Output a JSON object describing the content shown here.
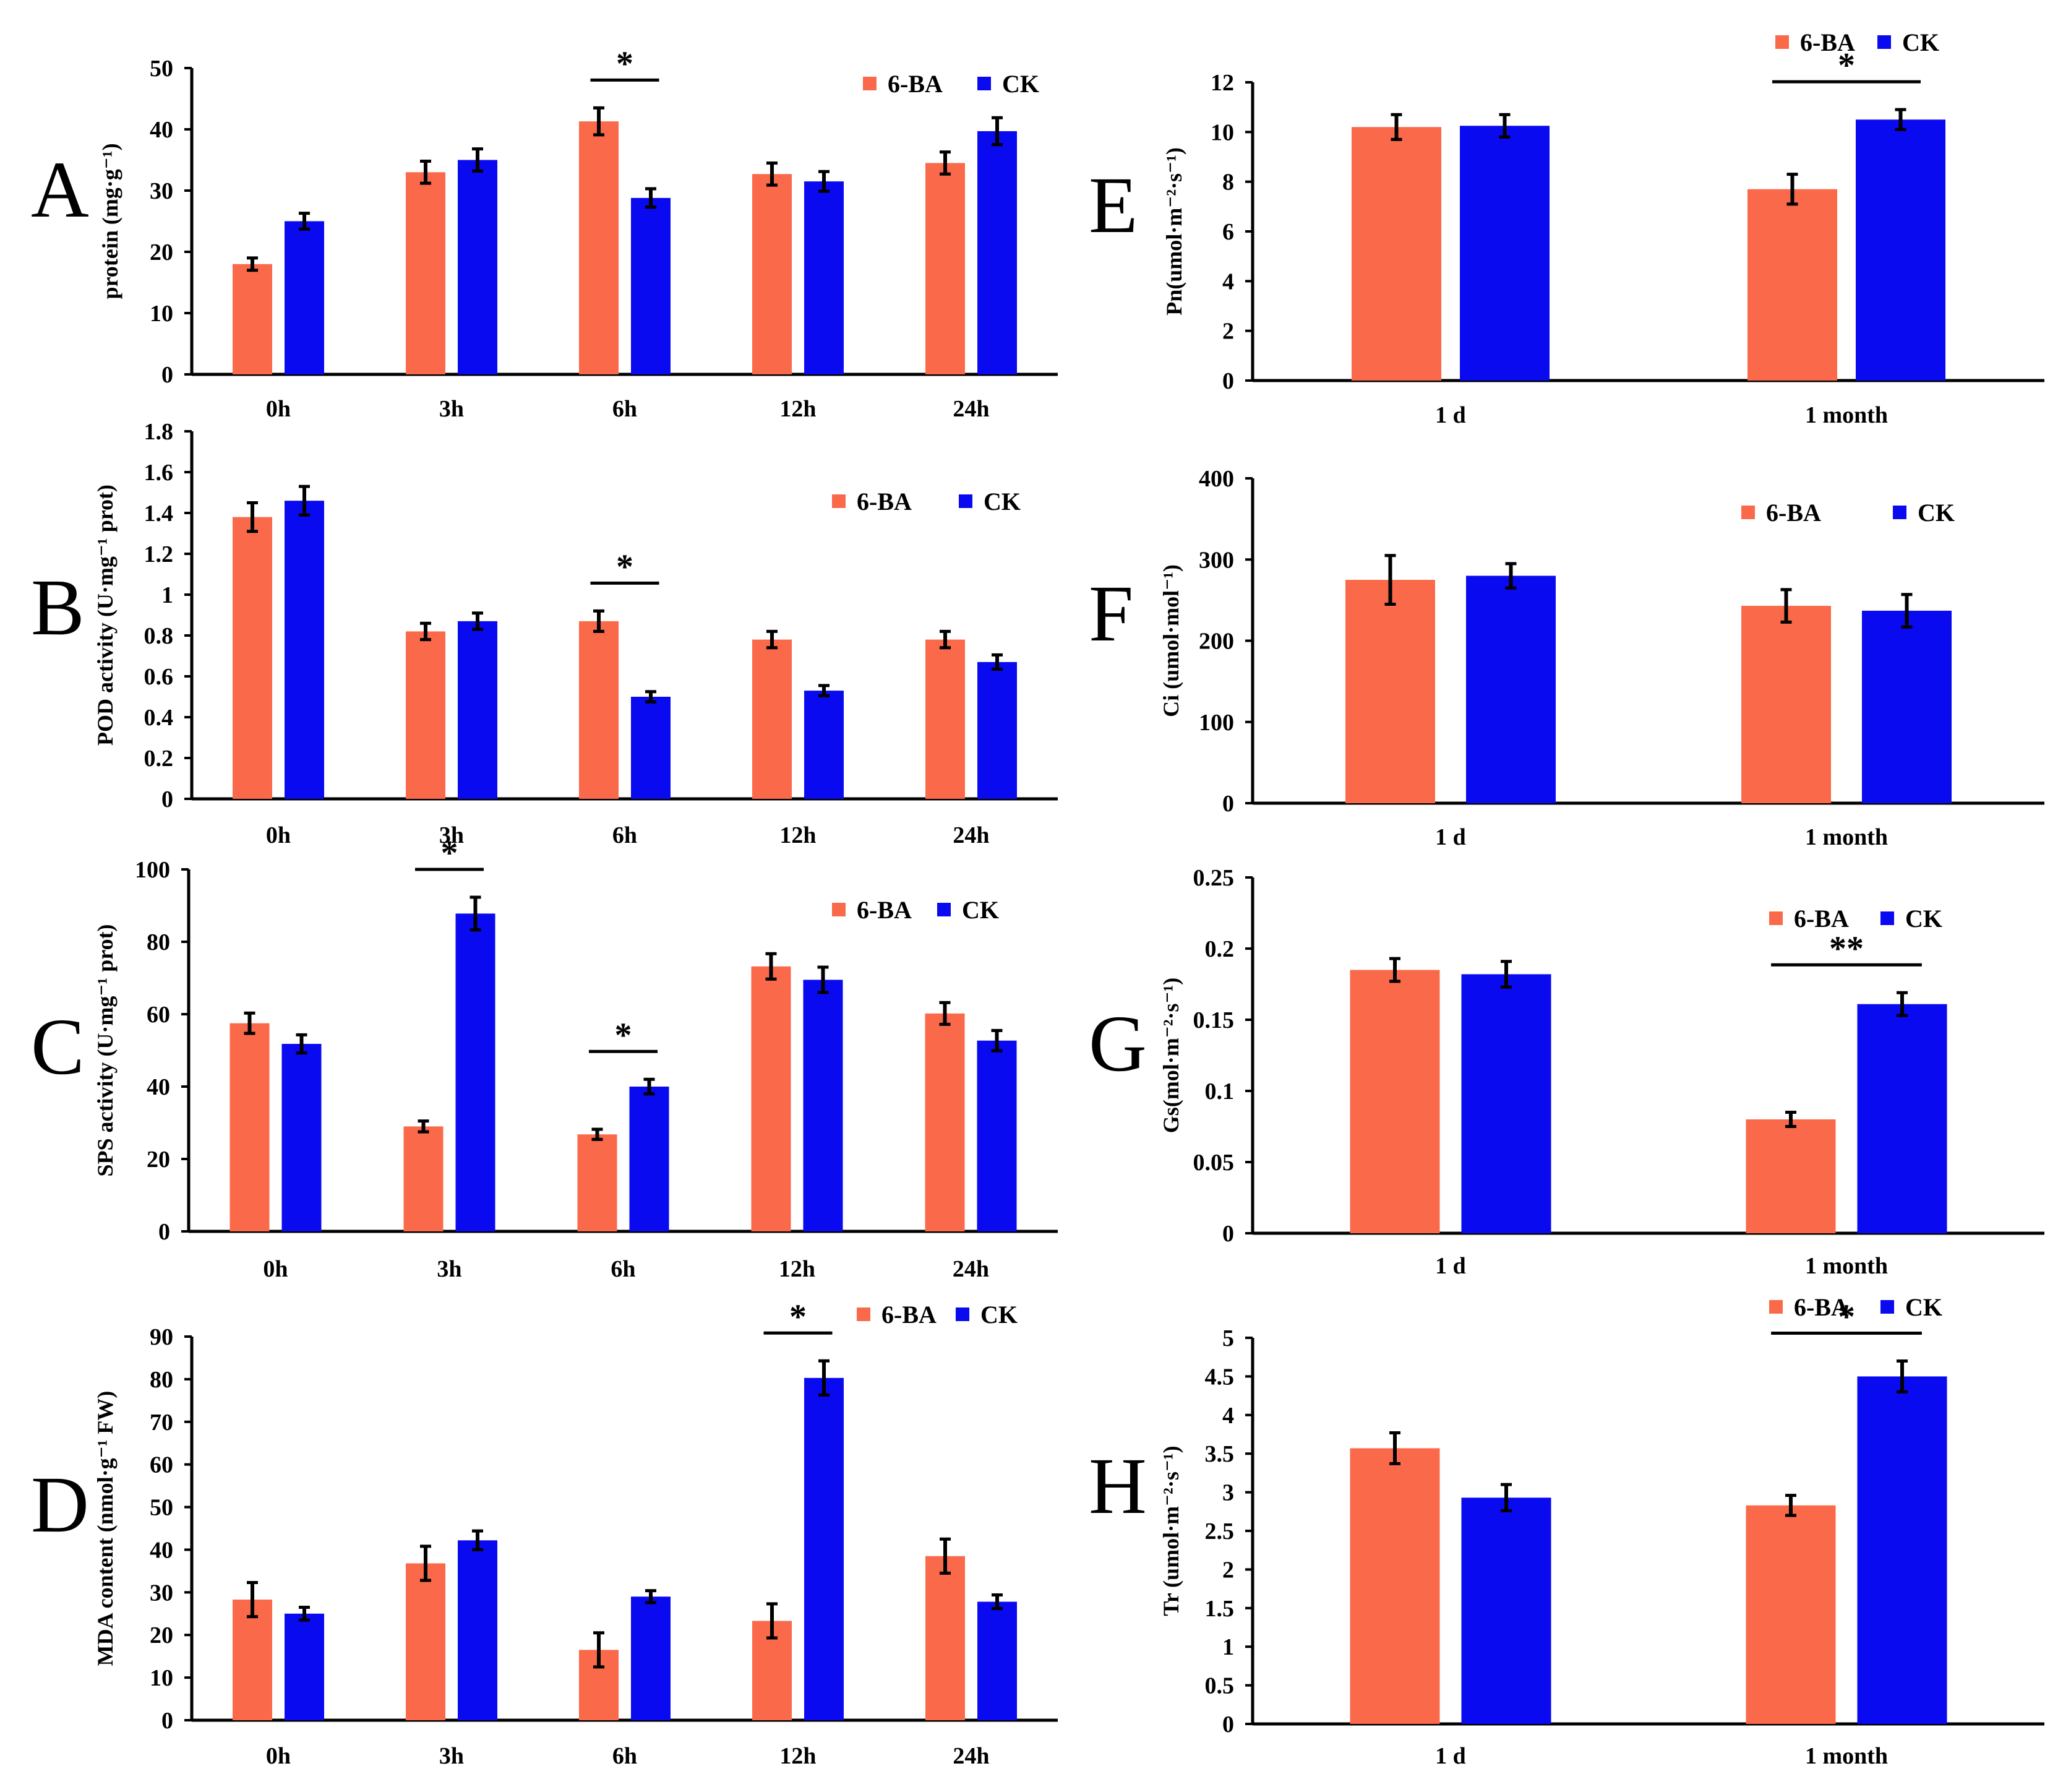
{
  "colors": {
    "ba": "#FA6A4A",
    "ck": "#0A0AF0"
  },
  "legend": {
    "ba": "6-BA",
    "ck": "CK"
  },
  "chart_data": [
    {
      "id": "A",
      "letter": "A",
      "type": "bar",
      "ylabel": "protein (mg·g⁻¹)",
      "ylim": [
        0,
        50
      ],
      "yticks": [
        "0",
        "10",
        "20",
        "30",
        "40",
        "50"
      ],
      "categories": [
        "0h",
        "3h",
        "6h",
        "12h",
        "24h"
      ],
      "series": [
        {
          "name": "6-BA",
          "values": [
            18,
            33,
            41.3,
            32.7,
            34.5
          ],
          "errors": [
            1,
            1.8,
            2.2,
            1.8,
            1.8
          ]
        },
        {
          "name": "CK",
          "values": [
            25,
            35,
            28.8,
            31.5,
            39.7
          ],
          "errors": [
            1.3,
            1.8,
            1.5,
            1.6,
            2.2
          ]
        }
      ],
      "significance": [
        {
          "category": "6h",
          "label": "*"
        }
      ],
      "legend_position": "top-right"
    },
    {
      "id": "B",
      "letter": "B",
      "type": "bar",
      "ylabel": "POD activity (U·mg⁻¹ prot)",
      "ylim": [
        0,
        1.8
      ],
      "yticks": [
        "0",
        "0.2",
        "0.4",
        "0.6",
        "0.8",
        "1",
        "1.2",
        "1.4",
        "1.6",
        "1.8"
      ],
      "categories": [
        "0h",
        "3h",
        "6h",
        "12h",
        "24h"
      ],
      "series": [
        {
          "name": "6-BA",
          "values": [
            1.38,
            0.82,
            0.87,
            0.78,
            0.78
          ],
          "errors": [
            0.07,
            0.04,
            0.05,
            0.04,
            0.04
          ]
        },
        {
          "name": "CK",
          "values": [
            1.46,
            0.87,
            0.5,
            0.53,
            0.67
          ],
          "errors": [
            0.07,
            0.04,
            0.025,
            0.025,
            0.035
          ]
        }
      ],
      "significance": [
        {
          "category": "6h",
          "label": "*"
        }
      ],
      "legend_position": "top-right"
    },
    {
      "id": "C",
      "letter": "C",
      "type": "bar",
      "ylabel": "SPS activity (U·mg⁻¹ prot)",
      "ylim": [
        0,
        100
      ],
      "yticks": [
        "0",
        "20",
        "40",
        "60",
        "80",
        "100"
      ],
      "categories": [
        "0h",
        "3h",
        "6h",
        "12h",
        "24h"
      ],
      "series": [
        {
          "name": "6-BA",
          "values": [
            57.5,
            29,
            26.8,
            73.2,
            60.2
          ],
          "errors": [
            2.8,
            1.5,
            1.4,
            3.5,
            3
          ]
        },
        {
          "name": "CK",
          "values": [
            51.8,
            87.8,
            40,
            69.5,
            52.7
          ],
          "errors": [
            2.5,
            4.5,
            2,
            3.5,
            2.8
          ]
        }
      ],
      "significance": [
        {
          "category": "3h",
          "label": "*"
        },
        {
          "category": "6h",
          "label": "*"
        }
      ],
      "legend_position": "top-right"
    },
    {
      "id": "D",
      "letter": "D",
      "type": "bar",
      "ylabel": "MDA content (nmol·g⁻¹ FW)",
      "ylim": [
        0,
        90
      ],
      "yticks": [
        "0",
        "10",
        "20",
        "30",
        "40",
        "50",
        "60",
        "70",
        "80",
        "90"
      ],
      "categories": [
        "0h",
        "3h",
        "6h",
        "12h",
        "24h"
      ],
      "series": [
        {
          "name": "6-BA",
          "values": [
            28.3,
            36.8,
            16.5,
            23.3,
            38.5
          ],
          "errors": [
            4,
            4,
            4,
            4,
            4
          ]
        },
        {
          "name": "CK",
          "values": [
            25,
            42.2,
            29,
            80.3,
            27.8
          ],
          "errors": [
            1.5,
            2.2,
            1.4,
            4,
            1.6
          ]
        }
      ],
      "significance": [
        {
          "category": "12h",
          "label": "*"
        }
      ],
      "legend_position": "top-right"
    },
    {
      "id": "E",
      "letter": "E",
      "type": "bar",
      "ylabel": "Pn(umol·m⁻²·s⁻¹)",
      "ylim": [
        0,
        12
      ],
      "yticks": [
        "0",
        "2",
        "4",
        "6",
        "8",
        "10",
        "12"
      ],
      "categories": [
        "1 d",
        "1 month"
      ],
      "series": [
        {
          "name": "6-BA",
          "values": [
            10.2,
            7.7
          ],
          "errors": [
            0.5,
            0.6
          ]
        },
        {
          "name": "CK",
          "values": [
            10.25,
            10.5
          ],
          "errors": [
            0.45,
            0.4
          ]
        }
      ],
      "significance": [
        {
          "category": "1 month",
          "label": "*"
        }
      ],
      "legend_position": "top-right"
    },
    {
      "id": "F",
      "letter": "F",
      "type": "bar",
      "ylabel": "Ci (umol·mol⁻¹)",
      "ylim": [
        0,
        400
      ],
      "yticks": [
        "0",
        "100",
        "200",
        "300",
        "400"
      ],
      "categories": [
        "1 d",
        "1 month"
      ],
      "series": [
        {
          "name": "6-BA",
          "values": [
            275,
            243
          ],
          "errors": [
            30,
            20
          ]
        },
        {
          "name": "CK",
          "values": [
            280,
            237
          ],
          "errors": [
            15,
            20
          ]
        }
      ],
      "significance": [],
      "legend_position": "top-right"
    },
    {
      "id": "G",
      "letter": "G",
      "type": "bar",
      "ylabel": "Gs(mol·m⁻²·s⁻¹)",
      "ylim": [
        0,
        0.25
      ],
      "yticks": [
        "0",
        "0.05",
        "0.1",
        "0.15",
        "0.2",
        "0.25"
      ],
      "categories": [
        "1 d",
        "1 month"
      ],
      "series": [
        {
          "name": "6-BA",
          "values": [
            0.185,
            0.08
          ],
          "errors": [
            0.008,
            0.005
          ]
        },
        {
          "name": "CK",
          "values": [
            0.182,
            0.161
          ],
          "errors": [
            0.009,
            0.008
          ]
        }
      ],
      "significance": [
        {
          "category": "1 month",
          "label": "**"
        }
      ],
      "legend_position": "top-right"
    },
    {
      "id": "H",
      "letter": "H",
      "type": "bar",
      "ylabel": "Tr (umol·m⁻²·s⁻¹)",
      "ylim": [
        0,
        5
      ],
      "yticks": [
        "0",
        "0.5",
        "1",
        "1.5",
        "2",
        "2.5",
        "3",
        "3.5",
        "4",
        "4.5",
        "5"
      ],
      "categories": [
        "1 d",
        "1 month"
      ],
      "series": [
        {
          "name": "6-BA",
          "values": [
            3.57,
            2.83
          ],
          "errors": [
            0.2,
            0.13
          ]
        },
        {
          "name": "CK",
          "values": [
            2.93,
            4.5
          ],
          "errors": [
            0.17,
            0.2
          ]
        }
      ],
      "significance": [
        {
          "category": "1 month",
          "label": "*"
        }
      ],
      "legend_position": "top-right"
    }
  ]
}
